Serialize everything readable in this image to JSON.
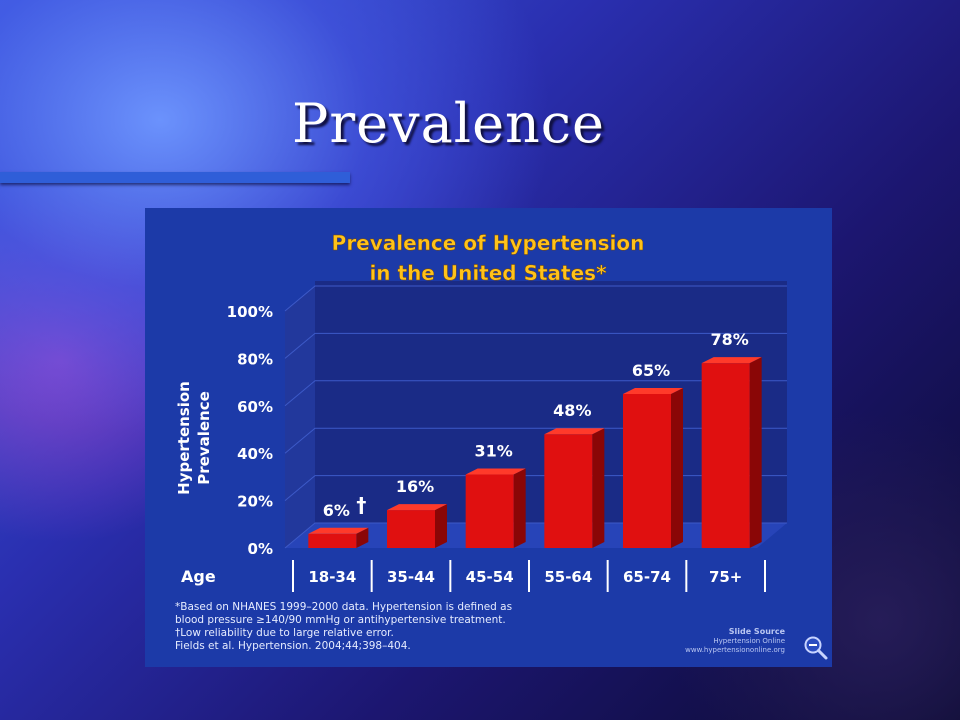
{
  "slide": {
    "title": "Prevalence"
  },
  "chart_data": {
    "type": "bar",
    "title": "Prevalence of Hypertension in the United States*",
    "title_lines": [
      "Prevalence of Hypertension",
      "in the United States*"
    ],
    "ylabel_lines": [
      "Hypertension",
      "Prevalence"
    ],
    "xlabel": "Age",
    "categories": [
      "18-34",
      "35-44",
      "45-54",
      "55-64",
      "65-74",
      "75+"
    ],
    "values": [
      6,
      16,
      31,
      48,
      65,
      78
    ],
    "data_labels": [
      "6%",
      "16%",
      "31%",
      "48%",
      "65%",
      "78%"
    ],
    "dagger": "†",
    "ylim": [
      0,
      100
    ],
    "yticks": [
      0,
      20,
      40,
      60,
      80,
      100
    ],
    "ytick_labels": [
      "0%",
      "20%",
      "40%",
      "60%",
      "80%",
      "100%"
    ],
    "grid": true,
    "footnotes": [
      "*Based on NHANES 1999–2000 data.  Hypertension is defined as",
      " blood pressure ≥140/90 mmHg or antihypertensive treatment.",
      "†Low reliability due to large relative error.",
      "Fields et al. Hypertension. 2004;44;398–404."
    ],
    "source": [
      "Slide Source",
      "Hypertension Online",
      "www.hypertensiononline.org"
    ],
    "colors": {
      "panel": "#1c3aa8",
      "plot_back": "#1a2b86",
      "grid": "#3d5ac8",
      "bar_front": "#e01010",
      "bar_side": "#8a0606",
      "bar_top": "#ff3a2a",
      "title": "#ffc21a",
      "text": "#ffffff"
    }
  },
  "icons": {
    "zoom": "zoom-out-icon"
  }
}
